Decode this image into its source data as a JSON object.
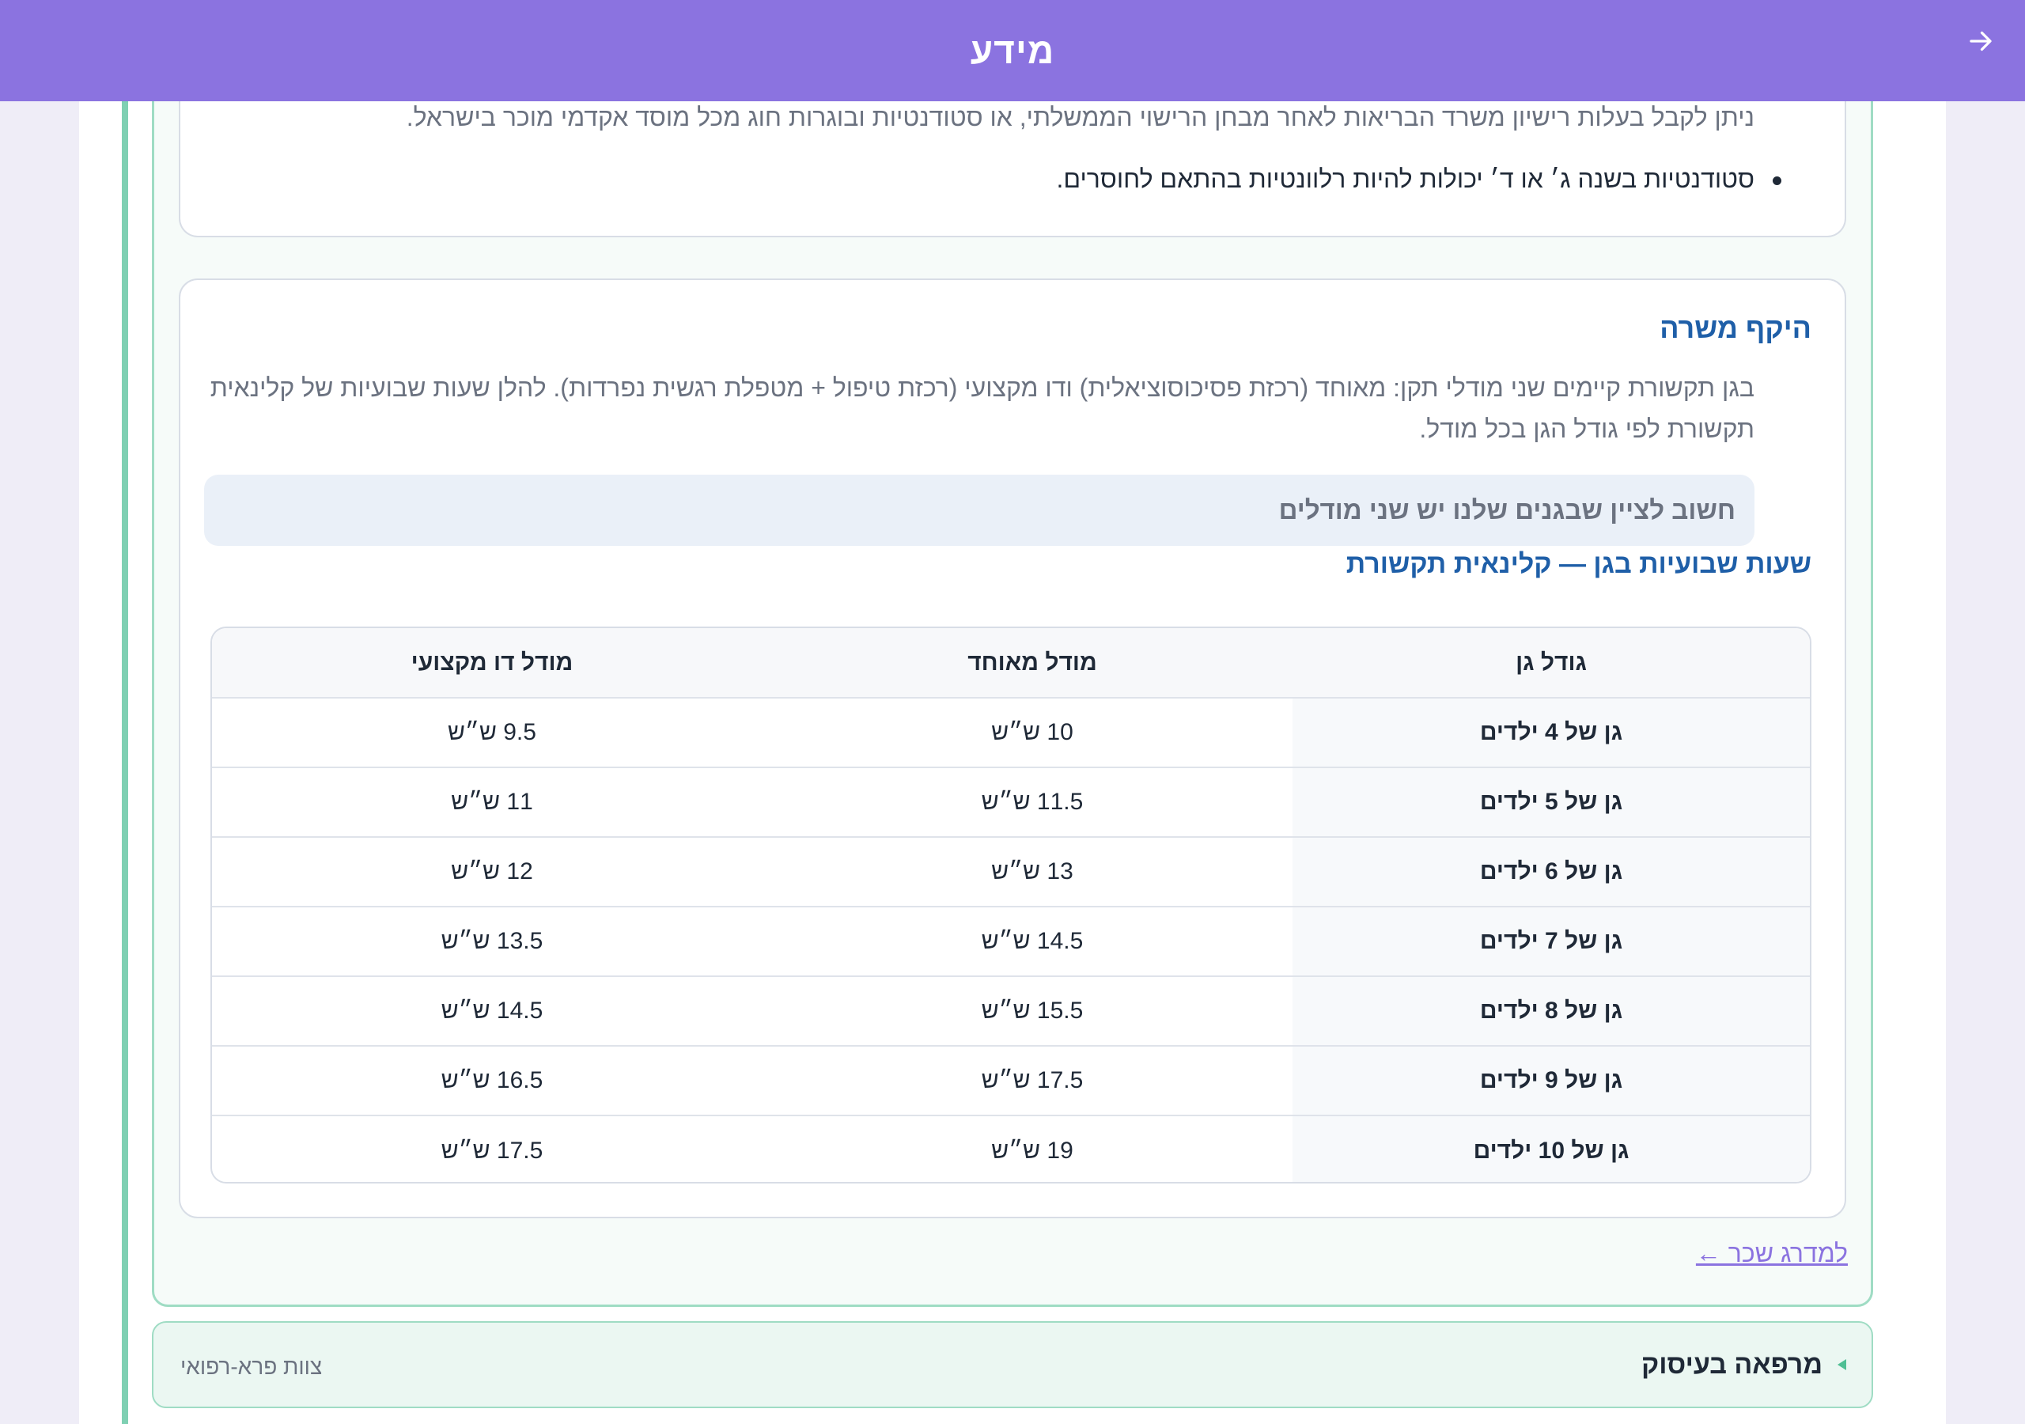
{
  "header": {
    "title": "מידע",
    "back_icon": "arrow-right-icon"
  },
  "eligibility_card": {
    "text": "ניתן לקבל בעלות רישיון משרד הבריאות לאחר מבחן הרישוי הממשלתי, או סטודנטיות ובוגרות חוג מכל מוסד אקדמי מוכר בישראל.",
    "bullet": "סטודנטיות בשנה ג׳ או ד׳ יכולות להיות רלוונטיות בהתאם לחוסרים."
  },
  "scope_card": {
    "title": "היקף משרה",
    "paragraph": "בגן תקשורת קיימים שני מודלי תקן: מאוחד (רכזת פסיכוסוציאלית) ודו מקצועי (רכזת טיפול + מטפלת רגשית נפרדות). להלן שעות שבועיות של קלינאית תקשורת לפי גודל הגן בכל מודל.",
    "note": "חשוב לציין שבגנים שלנו יש שני מודלים",
    "table_title": "שעות שבועיות בגן — קלינאית תקשורת",
    "table": {
      "headers": [
        "גודל גן",
        "מודל מאוחד",
        "מודל דו מקצועי"
      ],
      "rows": [
        [
          "גן של 4 ילדים",
          "10 ש״ש",
          "9.5 ש״ש"
        ],
        [
          "גן של 5 ילדים",
          "11.5 ש״ש",
          "11 ש״ש"
        ],
        [
          "גן של 6 ילדים",
          "13 ש״ש",
          "12 ש״ש"
        ],
        [
          "גן של 7 ילדים",
          "14.5 ש״ש",
          "13.5 ש״ש"
        ],
        [
          "גן של 8 ילדים",
          "15.5 ש״ש",
          "14.5 ש״ש"
        ],
        [
          "גן של 9 ילדים",
          "17.5 ש״ש",
          "16.5 ש״ש"
        ],
        [
          "גן של 10 ילדים",
          "19 ש״ש",
          "17.5 ש״ש"
        ]
      ]
    }
  },
  "salary_link": "למדרג שכר ←",
  "collapsed_section": {
    "title": "מרפאה בעיסוק",
    "subtitle": "צוות פרא-רפואי",
    "icon": "triangle-expand-icon"
  },
  "colors": {
    "header": "#8b73e0",
    "accent_green": "#9fdcc4",
    "title_blue": "#1f5fa8"
  }
}
